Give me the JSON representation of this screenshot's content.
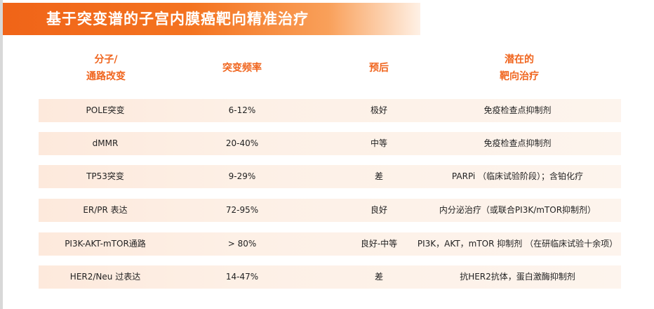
{
  "title": "基于突变谱的子宫内膜癌靶向精准治疗",
  "headers": {
    "molecule_line1": "分子/",
    "molecule_line2": "通路改变",
    "frequency": "突变频率",
    "prognosis": "预后",
    "therapy_line1": "潜在的",
    "therapy_line2": "靶向治疗"
  },
  "rows": [
    {
      "alteration": "POLE突变",
      "frequency": "6-12%",
      "prognosis": "极好",
      "therapy": "免疫检查点抑制剂"
    },
    {
      "alteration": "dMMR",
      "frequency": "20-40%",
      "prognosis": "中等",
      "therapy": "免疫检查点抑制剂"
    },
    {
      "alteration": "TP53突变",
      "frequency": "9-29%",
      "prognosis": "差",
      "therapy": "PARPi （临床试验阶段）；含铂化疗"
    },
    {
      "alteration": "ER/PR 表达",
      "frequency": "72-95%",
      "prognosis": "良好",
      "therapy": "内分泌治疗（或联合PI3K/mTOR抑制剂）"
    },
    {
      "alteration": "PI3K-AKT-mTOR通路",
      "frequency": "> 80%",
      "prognosis": "良好-中等",
      "therapy": "PI3K，AKT，mTOR 抑制剂 （在研临床试验十余项）"
    },
    {
      "alteration": "HER2/Neu 过表达",
      "frequency": "14-47%",
      "prognosis": "差",
      "therapy": "抗HER2抗体，蛋白激酶抑制剂"
    }
  ]
}
